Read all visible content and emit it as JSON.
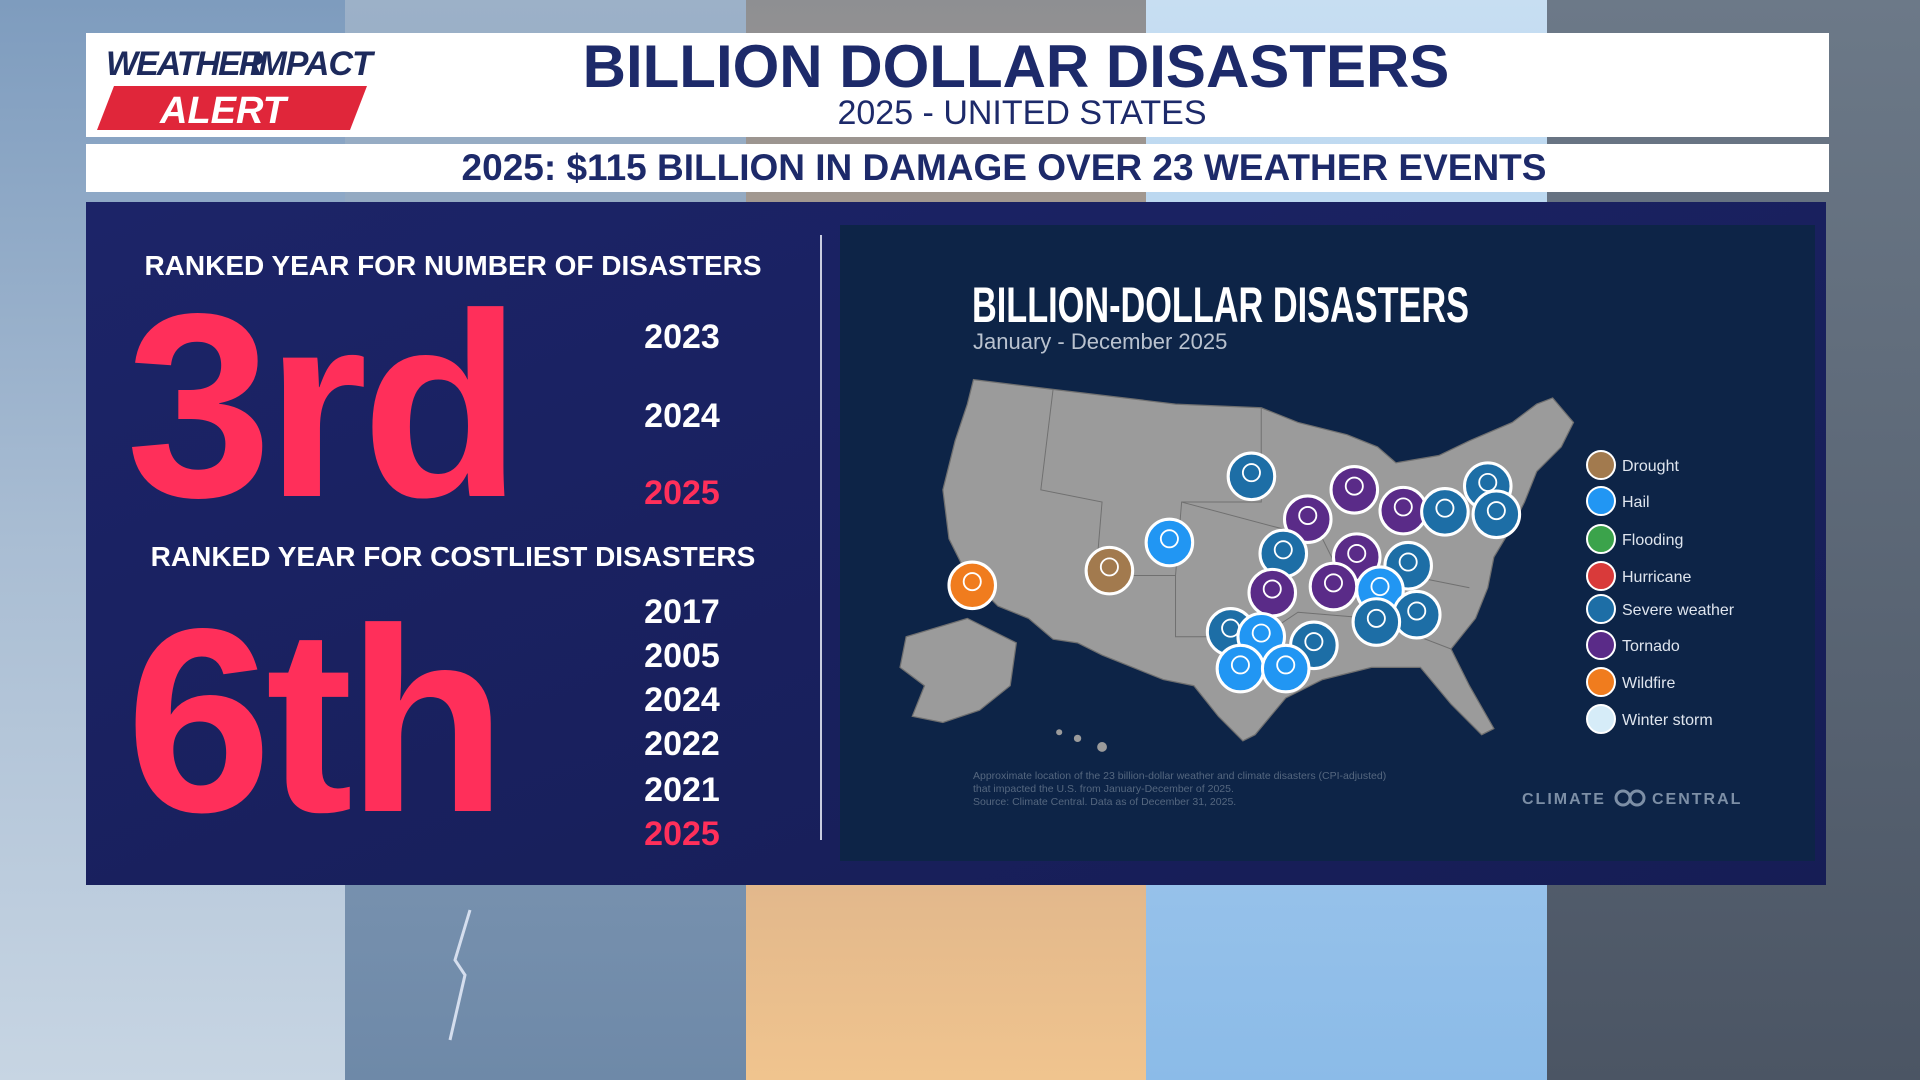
{
  "header": {
    "logo": {
      "weather": "WEATHER",
      "impact": "IMPACT",
      "alert": "ALERT"
    },
    "title": "BILLION DOLLAR DISASTERS",
    "subtitle": "2025 - UNITED STATES"
  },
  "banner": "2025: $115 BILLION IN DAMAGE OVER 23 WEATHER EVENTS",
  "rankings": [
    {
      "heading": "RANKED YEAR FOR NUMBER OF DISASTERS",
      "rank": "3rd",
      "years": [
        {
          "label": "2023",
          "highlight": false
        },
        {
          "label": "2024",
          "highlight": false
        },
        {
          "label": "2025",
          "highlight": true
        }
      ]
    },
    {
      "heading": "RANKED YEAR FOR COSTLIEST DISASTERS",
      "rank": "6th",
      "years": [
        {
          "label": "2017",
          "highlight": false
        },
        {
          "label": "2005",
          "highlight": false
        },
        {
          "label": "2024",
          "highlight": false
        },
        {
          "label": "2022",
          "highlight": false
        },
        {
          "label": "2021",
          "highlight": false
        },
        {
          "label": "2025",
          "highlight": true
        }
      ]
    }
  ],
  "map": {
    "title": "BILLION-DOLLAR DISASTERS",
    "subtitle": "January - December 2025",
    "legend": [
      {
        "label": "Drought",
        "color": "#a27a4e"
      },
      {
        "label": "Hail",
        "color": "#2196f3"
      },
      {
        "label": "Flooding",
        "color": "#3ba34b"
      },
      {
        "label": "Hurricane",
        "color": "#d93a3a"
      },
      {
        "label": "Severe weather",
        "color": "#1d6ea6"
      },
      {
        "label": "Tornado",
        "color": "#5a2b88"
      },
      {
        "label": "Wildfire",
        "color": "#f07c1e"
      },
      {
        "label": "Winter storm",
        "color": "#d6ecf8"
      }
    ],
    "footnote": [
      "Approximate location of the 23 billion-dollar weather and climate disasters (CPI-adjusted)",
      "that impacted the U.S. from January-December of 2025.",
      "Source: Climate Central. Data as of December 31, 2025."
    ],
    "credit": {
      "left": "CLIMATE",
      "right": "CENTRAL"
    }
  }
}
